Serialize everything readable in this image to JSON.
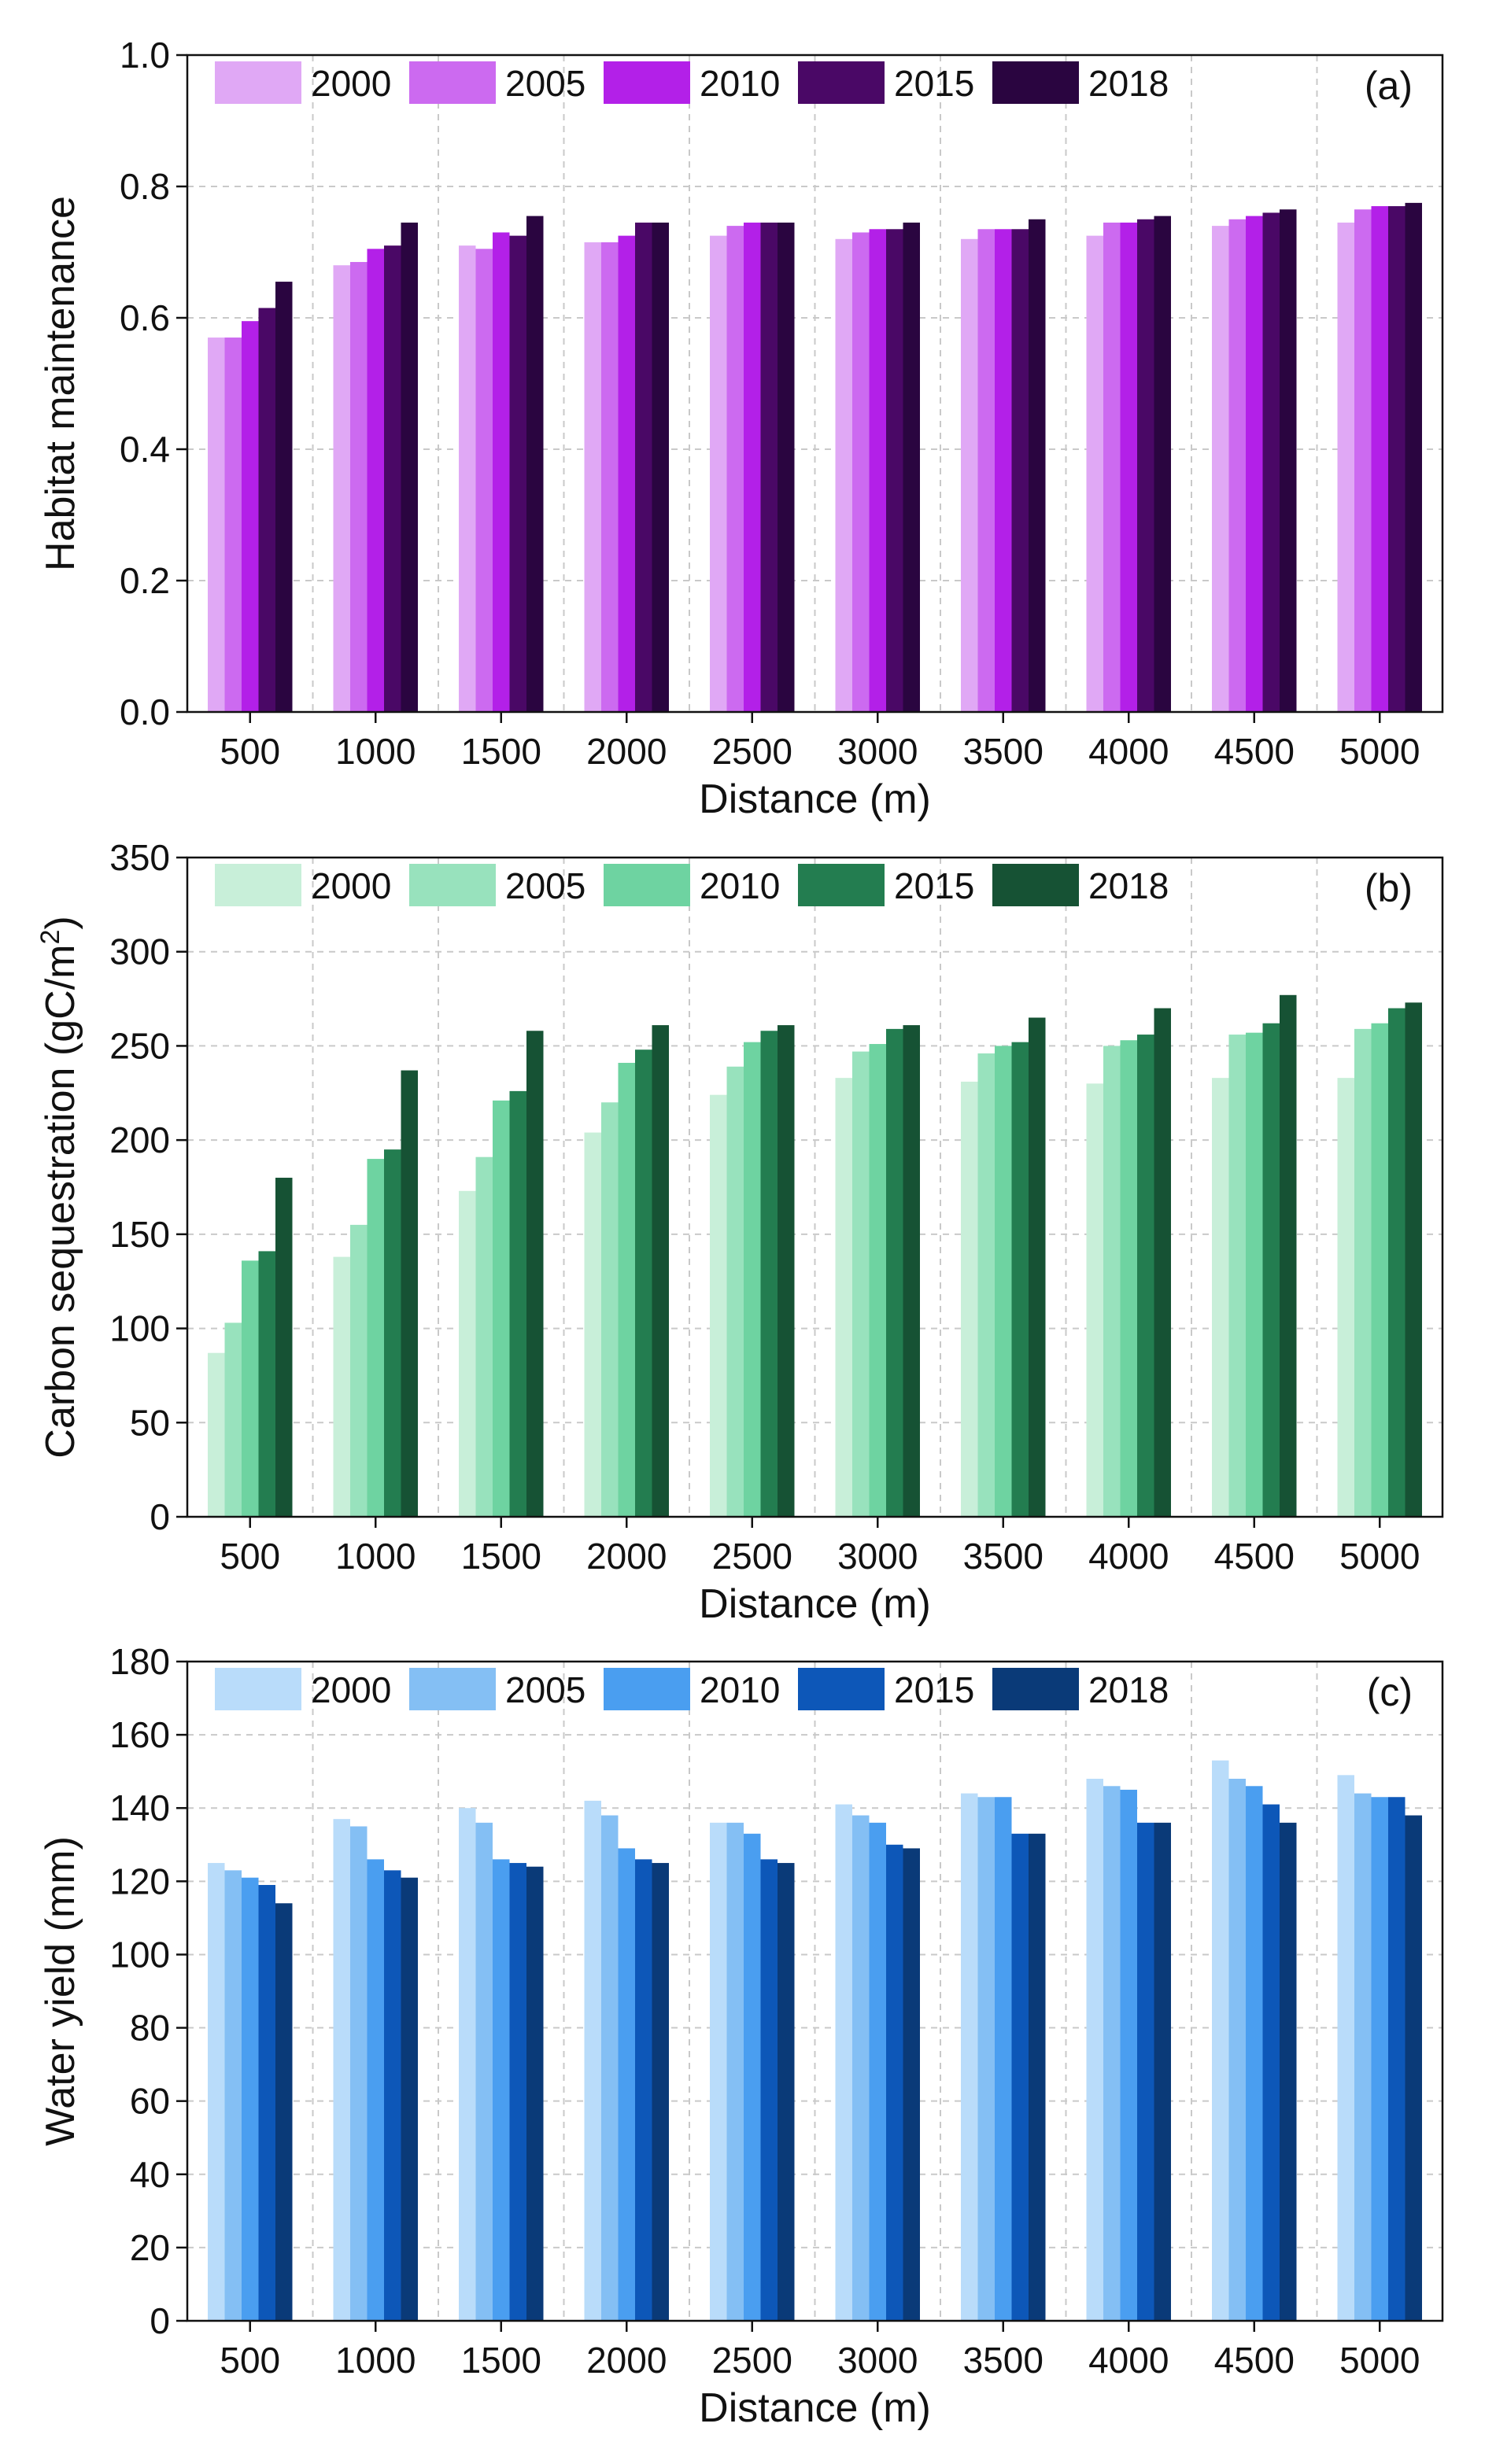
{
  "chart_data": [
    {
      "type": "bar",
      "panel_label": "(a)",
      "xlabel": "Distance (m)",
      "ylabel": "Habitat maintenance",
      "ylim": [
        0,
        1.0
      ],
      "yticks": [
        "0.0",
        "0.2",
        "0.4",
        "0.6",
        "0.8",
        "1.0"
      ],
      "grid": true,
      "legend_position": "top-left",
      "categories": [
        "500",
        "1000",
        "1500",
        "2000",
        "2500",
        "3000",
        "3500",
        "4000",
        "4500",
        "5000"
      ],
      "series": [
        {
          "name": "2000",
          "color": "#e0a8f5",
          "values": [
            0.57,
            0.68,
            0.71,
            0.715,
            0.725,
            0.72,
            0.72,
            0.725,
            0.74,
            0.745
          ]
        },
        {
          "name": "2005",
          "color": "#cc6af0",
          "values": [
            0.57,
            0.685,
            0.705,
            0.715,
            0.74,
            0.73,
            0.735,
            0.745,
            0.75,
            0.765
          ]
        },
        {
          "name": "2010",
          "color": "#b320e8",
          "values": [
            0.595,
            0.705,
            0.73,
            0.725,
            0.745,
            0.735,
            0.735,
            0.745,
            0.755,
            0.77
          ]
        },
        {
          "name": "2015",
          "color": "#4a0866",
          "values": [
            0.615,
            0.71,
            0.725,
            0.745,
            0.745,
            0.735,
            0.735,
            0.75,
            0.76,
            0.77
          ]
        },
        {
          "name": "2018",
          "color": "#2a0540",
          "values": [
            0.655,
            0.745,
            0.755,
            0.745,
            0.745,
            0.745,
            0.75,
            0.755,
            0.765,
            0.775
          ]
        }
      ]
    },
    {
      "type": "bar",
      "panel_label": "(b)",
      "xlabel": "Distance (m)",
      "ylabel": "Carbon sequestration (gC/m",
      "ylabel_sup": "2",
      "ylabel_end": ")",
      "ylim": [
        0,
        350
      ],
      "yticks": [
        "0",
        "50",
        "100",
        "150",
        "200",
        "250",
        "300",
        "350"
      ],
      "grid": true,
      "legend_position": "top-left",
      "categories": [
        "500",
        "1000",
        "1500",
        "2000",
        "2500",
        "3000",
        "3500",
        "4000",
        "4500",
        "5000"
      ],
      "series": [
        {
          "name": "2000",
          "color": "#c8efd9",
          "values": [
            87,
            138,
            173,
            204,
            224,
            233,
            231,
            230,
            233,
            233
          ]
        },
        {
          "name": "2005",
          "color": "#98e2bd",
          "values": [
            103,
            155,
            191,
            220,
            239,
            247,
            246,
            250,
            256,
            259
          ]
        },
        {
          "name": "2010",
          "color": "#6ed3a1",
          "values": [
            136,
            190,
            221,
            241,
            252,
            251,
            250,
            253,
            257,
            262
          ]
        },
        {
          "name": "2015",
          "color": "#237d50",
          "values": [
            141,
            195,
            226,
            248,
            258,
            259,
            252,
            256,
            262,
            270
          ]
        },
        {
          "name": "2018",
          "color": "#165234",
          "values": [
            180,
            237,
            258,
            261,
            261,
            261,
            265,
            270,
            277,
            273
          ]
        }
      ]
    },
    {
      "type": "bar",
      "panel_label": "(c)",
      "xlabel": "Distance (m)",
      "ylabel": "Water yield (mm)",
      "ylim": [
        0,
        180
      ],
      "yticks": [
        "0",
        "20",
        "40",
        "60",
        "80",
        "100",
        "120",
        "140",
        "160",
        "180"
      ],
      "grid": true,
      "legend_position": "top-left",
      "categories": [
        "500",
        "1000",
        "1500",
        "2000",
        "2500",
        "3000",
        "3500",
        "4000",
        "4500",
        "5000"
      ],
      "series": [
        {
          "name": "2000",
          "color": "#b9dcfa",
          "values": [
            125,
            137,
            140,
            142,
            136,
            141,
            144,
            148,
            153,
            149
          ]
        },
        {
          "name": "2005",
          "color": "#84bff4",
          "values": [
            123,
            135,
            136,
            138,
            136,
            138,
            143,
            146,
            148,
            144
          ]
        },
        {
          "name": "2010",
          "color": "#4a9ef0",
          "values": [
            121,
            126,
            126,
            129,
            133,
            136,
            143,
            145,
            146,
            143
          ]
        },
        {
          "name": "2015",
          "color": "#0d57b8",
          "values": [
            119,
            123,
            125,
            126,
            126,
            130,
            133,
            136,
            141,
            143
          ]
        },
        {
          "name": "2018",
          "color": "#0a3a78",
          "values": [
            114,
            121,
            124,
            125,
            125,
            129,
            133,
            136,
            136,
            138
          ]
        }
      ]
    }
  ]
}
